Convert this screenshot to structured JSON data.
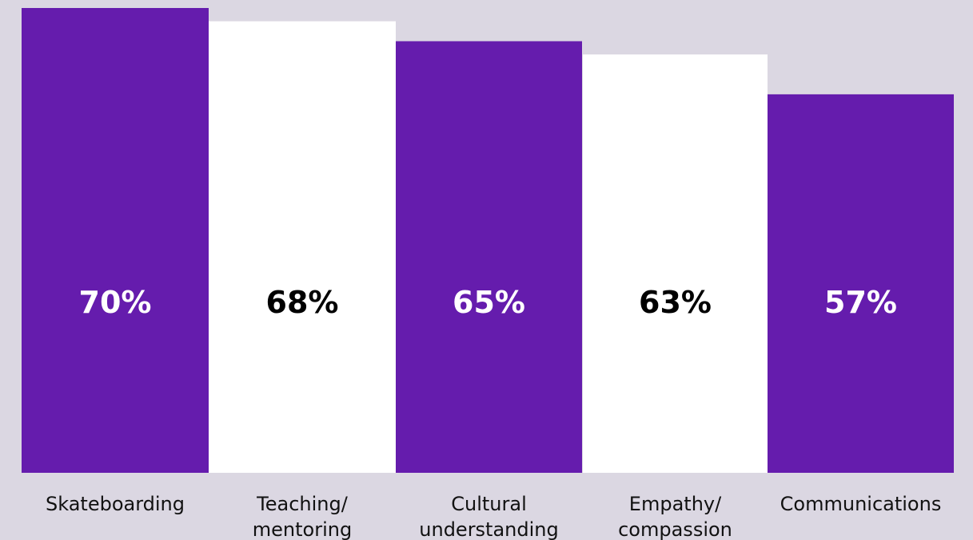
{
  "chart_data": {
    "type": "bar",
    "categories": [
      [
        "Skateboarding"
      ],
      [
        "Teaching/",
        "mentoring"
      ],
      [
        "Cultural",
        "understanding"
      ],
      [
        "Empathy/",
        "compassion"
      ],
      [
        "Communications"
      ]
    ],
    "values": [
      70,
      68,
      65,
      63,
      57
    ],
    "value_labels": [
      "70%",
      "68%",
      "65%",
      "63%",
      "57%"
    ],
    "ylim": [
      0,
      70
    ],
    "grid": false,
    "legend": "none",
    "colors": {
      "background": "#dbd7e2",
      "bar_alternating": [
        "#651cad",
        "#ffffff"
      ],
      "value_text_alternating": [
        "#ffffff",
        "#000000"
      ],
      "category_text": "#111111"
    }
  }
}
